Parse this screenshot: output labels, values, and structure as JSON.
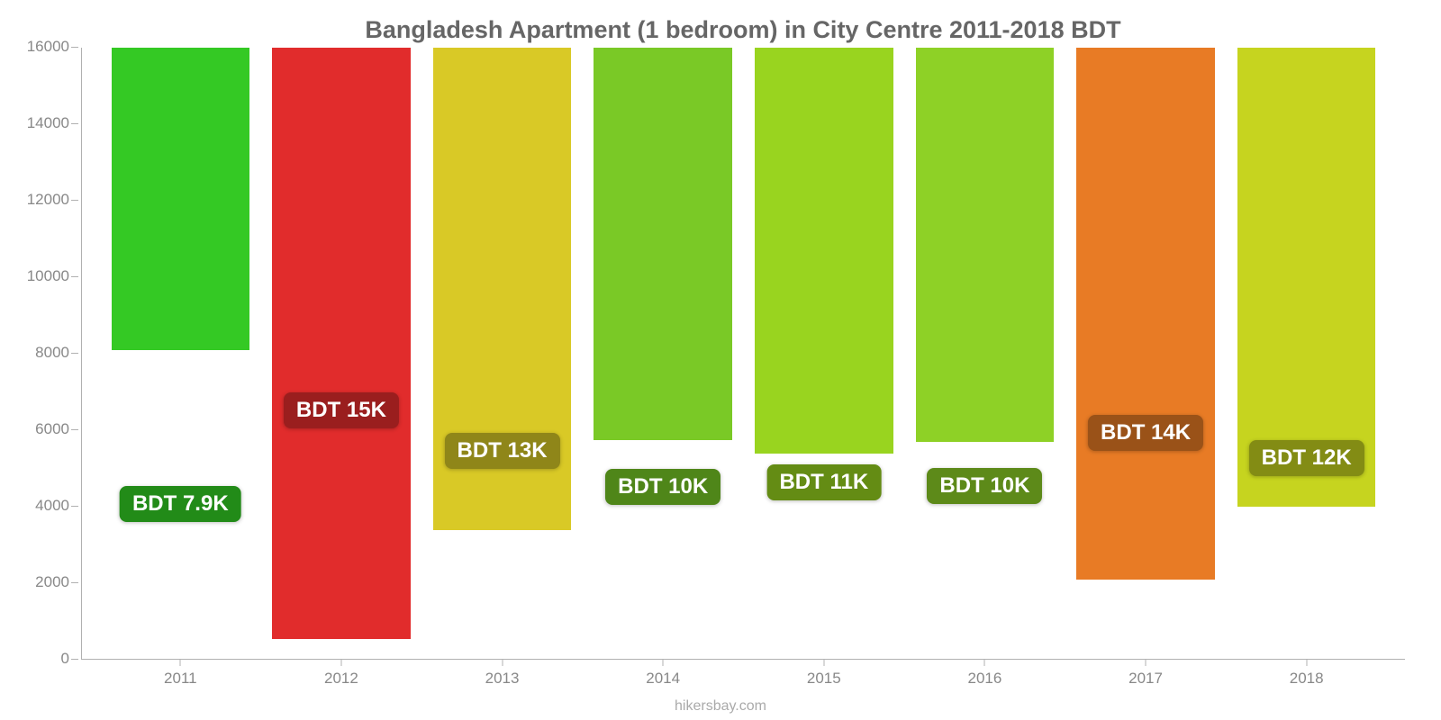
{
  "chart": {
    "type": "bar",
    "title": "Bangladesh Apartment (1 bedroom) in City Centre 2011-2018 BDT",
    "title_color": "#666666",
    "title_fontsize": 27,
    "background_color": "#ffffff",
    "axis_color": "#b0b0b0",
    "tick_label_color": "#888888",
    "tick_label_fontsize": 17,
    "ylim": [
      0,
      16000
    ],
    "ytick_step": 2000,
    "yticks": [
      0,
      2000,
      4000,
      6000,
      8000,
      10000,
      12000,
      14000,
      16000
    ],
    "categories": [
      "2011",
      "2012",
      "2013",
      "2014",
      "2015",
      "2016",
      "2017",
      "2018"
    ],
    "values": [
      7900,
      15450,
      12600,
      10250,
      10600,
      10300,
      13900,
      12000
    ],
    "bar_colors": [
      "#34c924",
      "#e12c2c",
      "#d9c926",
      "#7ac926",
      "#99d41f",
      "#8ed126",
      "#e87b25",
      "#c6d41f"
    ],
    "bar_width_pct": 86,
    "value_labels": [
      "BDT 7.9K",
      "BDT 15K",
      "BDT 13K",
      "BDT 10K",
      "BDT 11K",
      "BDT 10K",
      "BDT 14K",
      "BDT 12K"
    ],
    "value_label_bg": [
      "#228b18",
      "#9a1e1e",
      "#8f8619",
      "#4f8619",
      "#648c14",
      "#5d8a19",
      "#9a5218",
      "#838c14"
    ],
    "value_label_ypx": [
      487,
      383,
      428,
      468,
      463,
      467,
      408,
      436
    ],
    "value_label_fontsize": 24,
    "value_label_color": "#ffffff",
    "footer": "hikersbay.com",
    "footer_color": "#aaaaaa"
  }
}
